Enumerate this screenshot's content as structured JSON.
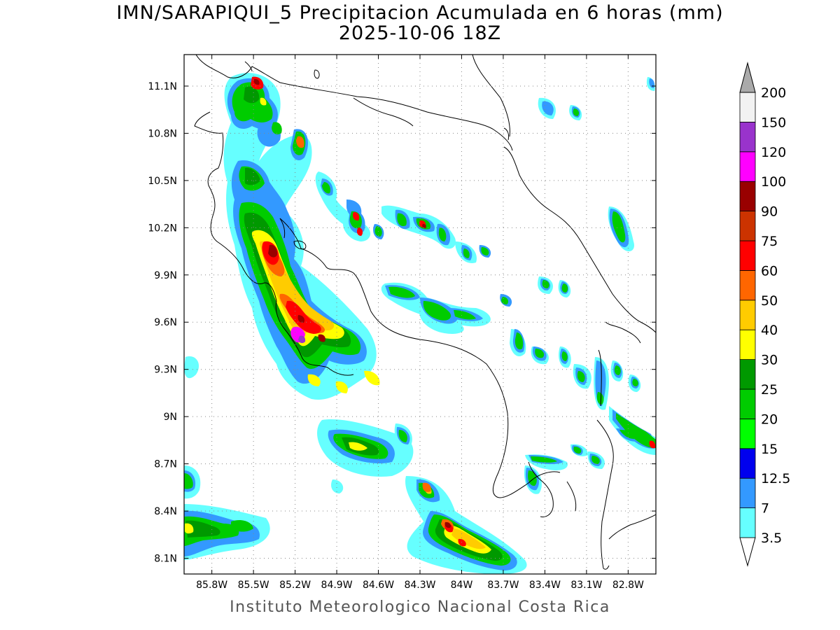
{
  "title": "IMN/SARAPIQUI_5 Precipitacion Acumulada en 6 horas (mm)",
  "subtitle": "2025-10-06 18Z",
  "credit": "Instituto Meteorologico Nacional Costa Rica",
  "map": {
    "lon_range": [
      -86.0,
      -82.6
    ],
    "lat_range": [
      8.0,
      11.3
    ],
    "x_ticks": [
      "85.8W",
      "85.5W",
      "85.2W",
      "84.9W",
      "84.6W",
      "84.3W",
      "84W",
      "83.7W",
      "83.4W",
      "83.1W",
      "82.8W"
    ],
    "y_ticks": [
      "11.1N",
      "10.8N",
      "10.5N",
      "10.2N",
      "9.9N",
      "9.6N",
      "9.3N",
      "9N",
      "8.7N",
      "8.4N",
      "8.1N"
    ],
    "grid": "dotted"
  },
  "legend": {
    "levels": [
      "3.5",
      "7",
      "12.5",
      "15",
      "20",
      "25",
      "30",
      "40",
      "50",
      "60",
      "75",
      "90",
      "100",
      "120",
      "150",
      "200"
    ],
    "colors": [
      "#66ffff",
      "#3399ff",
      "#0000ee",
      "#00ff00",
      "#00cc00",
      "#009900",
      "#ffff00",
      "#ffcc00",
      "#ff6600",
      "#ff0000",
      "#cc3300",
      "#990000",
      "#ff00ff",
      "#9933cc",
      "#f2f2f2",
      "#aaaaaa"
    ]
  }
}
